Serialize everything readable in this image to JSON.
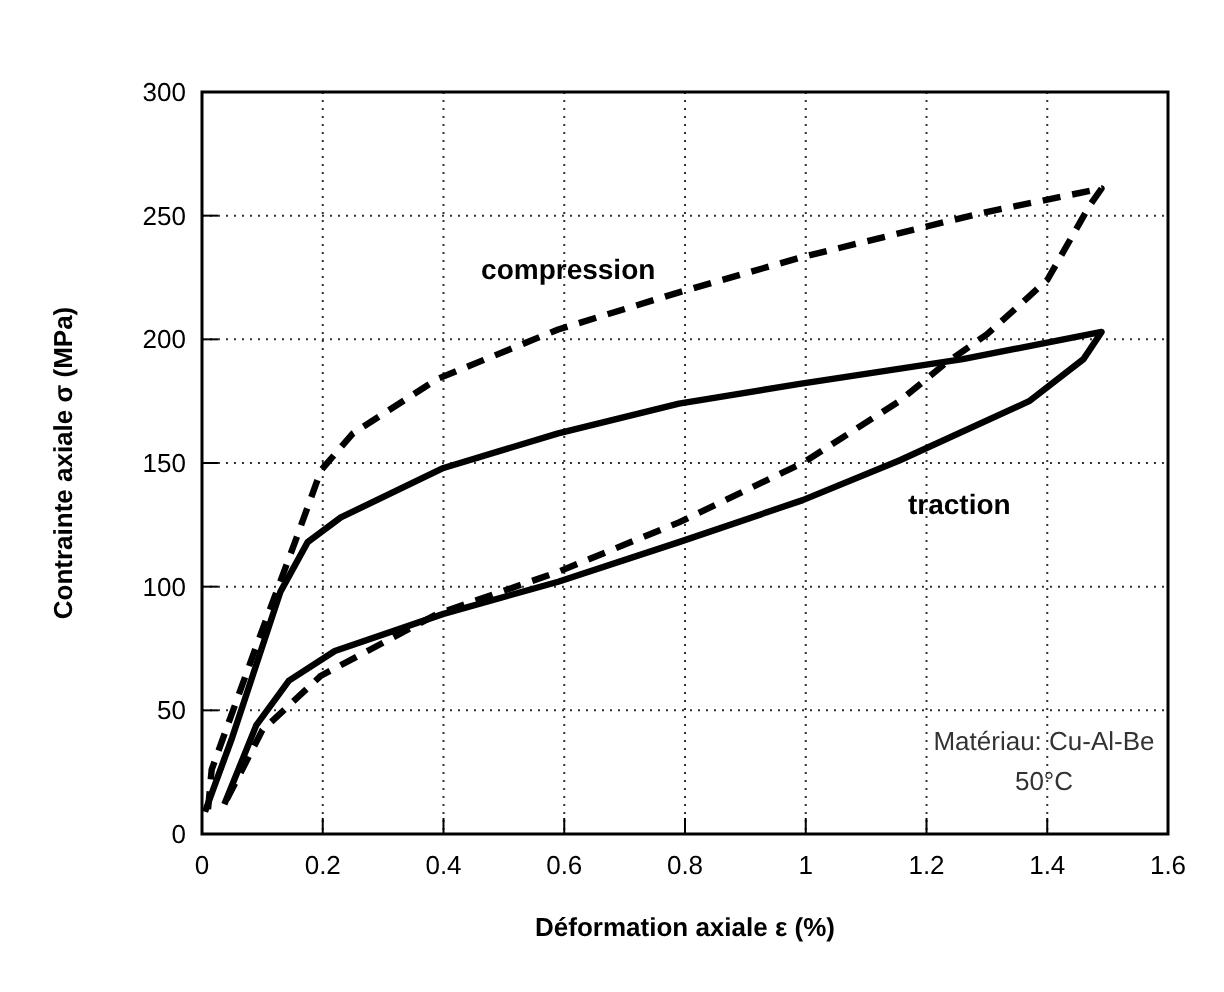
{
  "chart_data": {
    "type": "line",
    "xlabel": "Déformation axiale ε (%)",
    "ylabel": "Contrainte axiale σ (MPa)",
    "xlim": [
      0,
      1.6
    ],
    "ylim": [
      0,
      300
    ],
    "xticks": [
      0,
      0.2,
      0.4,
      0.6,
      0.8,
      1,
      1.2,
      1.4,
      1.6
    ],
    "yticks": [
      0,
      50,
      100,
      150,
      200,
      250,
      300
    ],
    "grid": true,
    "marker": "none",
    "series": [
      {
        "name": "compression",
        "color": "#000000",
        "line_style": "dashed",
        "x": [
          0.01,
          0.016,
          0.09,
          0.154,
          0.197,
          0.25,
          0.39,
          0.59,
          0.79,
          0.99,
          1.29,
          1.49,
          1.47,
          1.4,
          1.3,
          1.23,
          1.155,
          0.995,
          0.79,
          0.59,
          0.39,
          0.197,
          0.1,
          0.037
        ],
        "values": [
          10,
          26,
          76,
          118,
          147,
          162,
          184,
          204,
          219,
          233,
          251,
          261,
          254,
          224,
          202,
          190,
          175,
          150,
          126,
          106,
          89,
          64,
          42,
          12
        ]
      },
      {
        "name": "traction",
        "color": "#000000",
        "line_style": "solid",
        "x": [
          0.005,
          0.05,
          0.13,
          0.175,
          0.23,
          0.4,
          0.59,
          0.79,
          0.99,
          1.26,
          1.49,
          1.46,
          1.37,
          1.155,
          0.995,
          0.79,
          0.59,
          0.4,
          0.22,
          0.144,
          0.09,
          0.037
        ],
        "values": [
          9,
          39,
          98,
          118,
          128,
          148,
          162,
          174,
          182,
          192,
          203,
          192,
          175,
          151,
          135,
          118,
          102,
          89,
          74,
          62,
          44,
          12
        ]
      }
    ],
    "annotations": [
      "Matériau: Cu-Al-Be",
      "50°C"
    ]
  }
}
